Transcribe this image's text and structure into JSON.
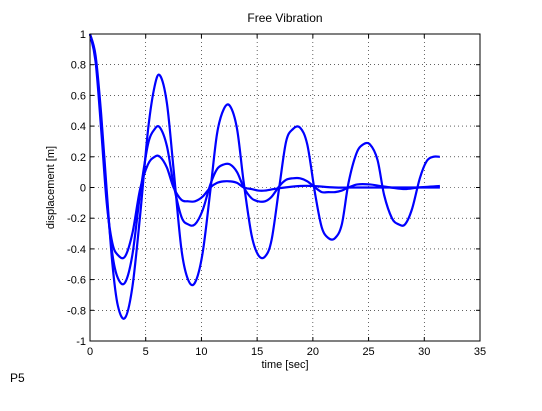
{
  "caption": "P5",
  "chart_data": {
    "type": "line",
    "title": "Free Vibration",
    "xlabel": "time [sec]",
    "ylabel": "displacement [m]",
    "xlim": [
      0,
      35
    ],
    "ylim": [
      -1,
      1
    ],
    "xticks": [
      0,
      5,
      10,
      15,
      20,
      25,
      30,
      35
    ],
    "yticks": [
      -1,
      -0.8,
      -0.6,
      -0.4,
      -0.2,
      0,
      0.2,
      0.4,
      0.6,
      0.8,
      1
    ],
    "grid": true,
    "line_color": "#0000ff",
    "series": [
      {
        "t": [
          0,
          0.5,
          1,
          1.5,
          2,
          2.5,
          3.14,
          3.8,
          4.5,
          5.2,
          5.8,
          6.28,
          6.9,
          7.5,
          8.2,
          8.8,
          9.42,
          10.1,
          10.8,
          11.4,
          12,
          12.57,
          13.2,
          13.8,
          14.5,
          15.1,
          15.71,
          16.3,
          17,
          17.6,
          18.2,
          18.85,
          19.5,
          20.2,
          20.8,
          21.4,
          21.99,
          22.6,
          23.2,
          23.9,
          24.5,
          25.13,
          25.8,
          26.4,
          27.1,
          27.7,
          28.27,
          28.9,
          29.6,
          30.2,
          30.8,
          31.4
        ],
        "y": [
          1,
          0.86,
          0.48,
          -0.02,
          -0.49,
          -0.77,
          -0.85,
          -0.65,
          -0.18,
          0.37,
          0.66,
          0.73,
          0.55,
          0.12,
          -0.4,
          -0.6,
          -0.62,
          -0.43,
          -0.02,
          0.35,
          0.51,
          0.53,
          0.38,
          0.03,
          -0.31,
          -0.44,
          -0.45,
          -0.34,
          0.01,
          0.3,
          0.38,
          0.39,
          0.28,
          -0.04,
          -0.26,
          -0.33,
          -0.33,
          -0.24,
          0.03,
          0.22,
          0.28,
          0.28,
          0.18,
          -0.05,
          -0.2,
          -0.24,
          -0.24,
          -0.14,
          0.06,
          0.17,
          0.2,
          0.2
        ]
      },
      {
        "t": [
          0,
          0.5,
          1,
          1.5,
          2,
          2.5,
          3.14,
          3.8,
          4.5,
          5.2,
          5.8,
          6.28,
          6.9,
          7.5,
          8.2,
          8.8,
          9.42,
          10.1,
          10.8,
          11.4,
          12,
          12.57,
          13.2,
          13.8,
          14.5,
          15.1,
          15.71,
          16.3,
          17,
          17.6,
          18.2,
          18.85,
          19.5,
          20.2,
          20.8,
          21.4,
          21.99,
          22.6,
          23.2,
          24,
          25.13,
          26,
          27,
          28.27,
          29.5,
          31.4
        ],
        "y": [
          1,
          0.84,
          0.43,
          -0.07,
          -0.43,
          -0.59,
          -0.62,
          -0.44,
          -0.04,
          0.28,
          0.38,
          0.39,
          0.27,
          0.02,
          -0.19,
          -0.24,
          -0.24,
          -0.15,
          0.02,
          0.12,
          0.15,
          0.15,
          0.1,
          0.0,
          -0.07,
          -0.09,
          -0.09,
          -0.06,
          0.01,
          0.05,
          0.06,
          0.06,
          0.04,
          0.0,
          -0.03,
          -0.03,
          -0.03,
          -0.02,
          0.0,
          0.02,
          0.02,
          0.01,
          0.0,
          -0.01,
          0.0,
          0.01
        ]
      },
      {
        "t": [
          0,
          0.5,
          1,
          1.5,
          2,
          2.5,
          3.14,
          3.8,
          4.5,
          5.2,
          5.8,
          6.28,
          6.9,
          7.5,
          8.2,
          8.8,
          9.42,
          10.1,
          10.8,
          11.4,
          12,
          12.57,
          13.2,
          13.8,
          14.5,
          15.1,
          15.71,
          16.5,
          17.5,
          18.85,
          20,
          21.99,
          24,
          25.13,
          27,
          28.27,
          30,
          31.4
        ],
        "y": [
          1,
          0.82,
          0.38,
          -0.1,
          -0.36,
          -0.44,
          -0.45,
          -0.3,
          -0.01,
          0.15,
          0.2,
          0.2,
          0.13,
          0.0,
          -0.08,
          -0.09,
          -0.09,
          -0.06,
          0.0,
          0.03,
          0.04,
          0.04,
          0.03,
          0.0,
          -0.01,
          -0.02,
          -0.02,
          -0.01,
          0.0,
          0.01,
          0.01,
          0.0,
          0.0,
          0.0,
          0.0,
          0.0,
          0.0,
          0.0
        ]
      }
    ]
  }
}
